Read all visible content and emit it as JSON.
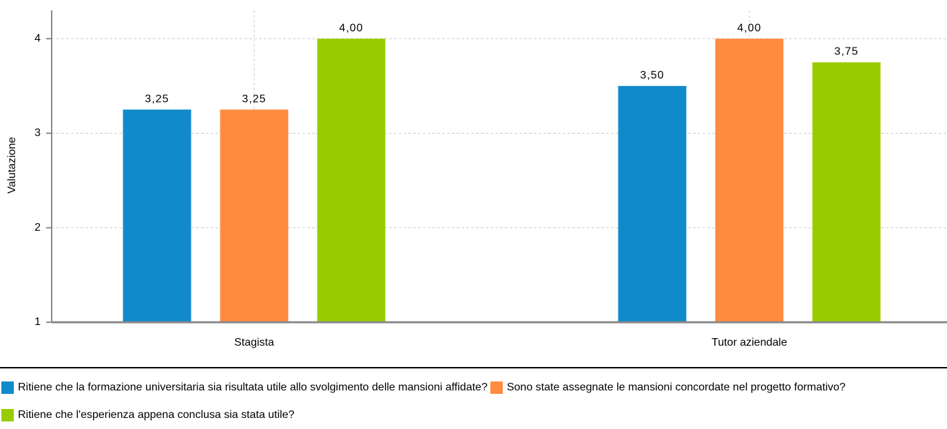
{
  "chart_data": {
    "type": "bar",
    "y_label": "Valutazione",
    "categories": [
      "Stagista",
      "Tutor aziendale"
    ],
    "series": [
      {
        "name": "Ritiene che la formazione universitaria sia risultata utile allo svolgimento delle mansioni affidate?",
        "color": "#118acb",
        "values": [
          3.25,
          3.5
        ],
        "value_labels": [
          "3,25",
          "3,50"
        ]
      },
      {
        "name": "Sono state assegnate le mansioni concordate nel progetto formativo?",
        "color": "#ff8b41",
        "values": [
          3.25,
          4
        ],
        "value_labels": [
          "3,25",
          "4,00"
        ]
      },
      {
        "name": "Ritiene che l'esperienza appena conclusa sia stata utile?",
        "color": "#99cc00",
        "values": [
          4,
          3.75
        ],
        "value_labels": [
          "4,00",
          "3,75"
        ]
      }
    ],
    "ylim": [
      1,
      4.3
    ],
    "yticks": [
      1,
      2,
      3,
      4
    ],
    "grid": true
  }
}
